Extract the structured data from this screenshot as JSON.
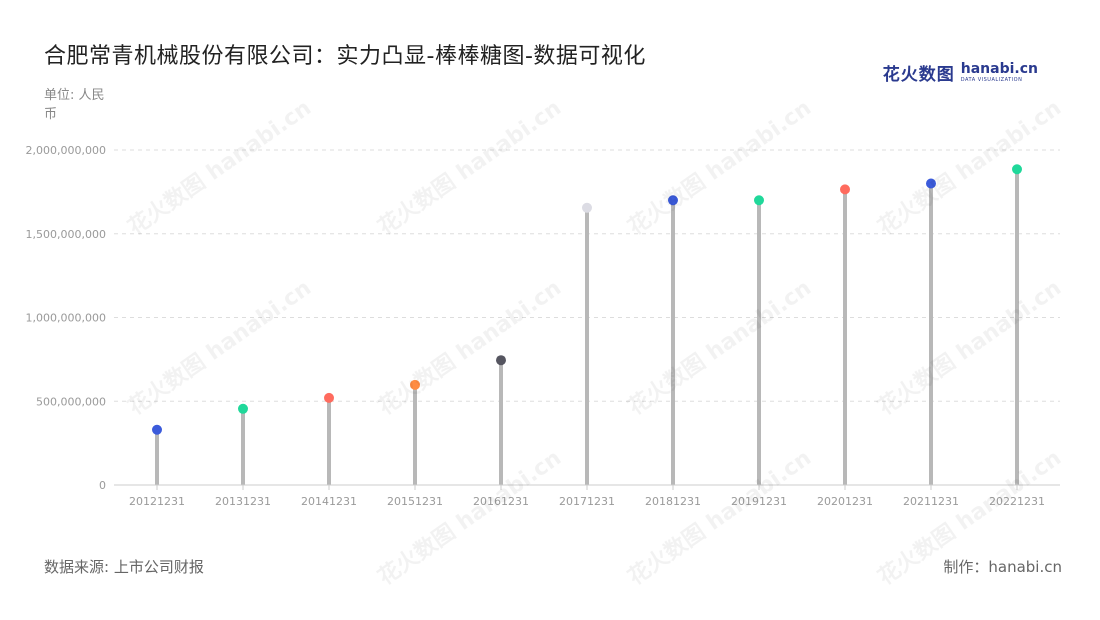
{
  "title": "合肥常青机械股份有限公司：实力凸显-棒棒糖图-数据可视化",
  "unit_label": "单位: 人民币",
  "source_label": "数据来源: 上市公司财报",
  "credit_label": "制作：hanabi.cn",
  "logo": {
    "cn": "花火数图",
    "en": "hanabi.cn",
    "sub": "DATA VISUALIZATION"
  },
  "watermark": "花火数图 hanabi.cn",
  "colors": {
    "stem": "#b8b8b8",
    "grid": "#dddddd",
    "axis": "#cccccc"
  },
  "chart_data": {
    "type": "lollipop",
    "categories": [
      "20121231",
      "20131231",
      "20141231",
      "20151231",
      "20161231",
      "20171231",
      "20181231",
      "20191231",
      "20201231",
      "20211231",
      "20221231"
    ],
    "values": [
      330000000,
      455000000,
      520000000,
      598000000,
      745000000,
      1655000000,
      1700000000,
      1700000000,
      1765000000,
      1800000000,
      1885000000
    ],
    "point_colors": [
      "#3b5bdb",
      "#20d89a",
      "#ff6b5e",
      "#ff8c42",
      "#555560",
      "#dcdce4",
      "#3b5bdb",
      "#20d89a",
      "#ff6b5e",
      "#3b5bdb",
      "#20d89a"
    ],
    "ylim": [
      0,
      2000000000
    ],
    "yticks": [
      0,
      500000000,
      1000000000,
      1500000000,
      2000000000
    ],
    "ytick_labels": [
      "0",
      "500,000,000",
      "1,000,000,000",
      "1,500,000,000",
      "2,000,000,000"
    ],
    "grid": true
  }
}
